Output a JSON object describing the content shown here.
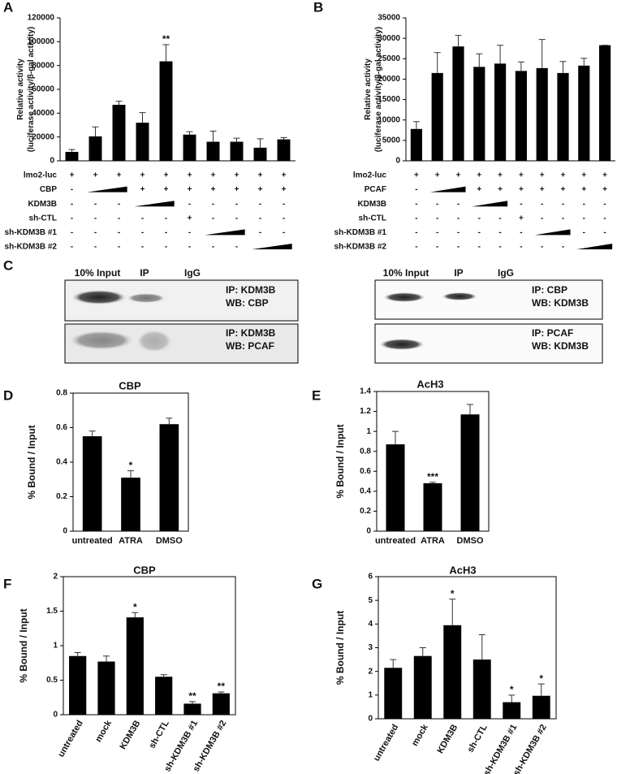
{
  "chart_data": [
    {
      "type": "bar",
      "panel": "A",
      "ylabel": [
        "Relative activity",
        "(luciferase activity/β-gal activity)"
      ],
      "categories": [
        null,
        null,
        null,
        null,
        null,
        null,
        null,
        null,
        null,
        null
      ],
      "values": [
        7500,
        20500,
        47000,
        32000,
        83500,
        22000,
        16000,
        16000,
        11000,
        18000
      ],
      "errors": [
        2000,
        8000,
        3000,
        8500,
        14000,
        2500,
        9000,
        3000,
        7500,
        1500
      ],
      "color": "#000000",
      "ylim": [
        0,
        120000
      ],
      "yticks": [
        0,
        20000,
        40000,
        60000,
        80000,
        100000,
        120000
      ],
      "annotations": [
        {
          "bar": 4,
          "text": "**"
        }
      ],
      "conditions": [
        {
          "label": "lmo2-luc",
          "cells": [
            "+",
            "+",
            "+",
            "+",
            "+",
            "+",
            "+",
            "+",
            "+",
            "+"
          ]
        },
        {
          "label": "CBP",
          "cells": [
            "-",
            null,
            null,
            "+",
            "+",
            "+",
            "+",
            "+",
            "+",
            "+"
          ]
        },
        {
          "label": "KDM3B",
          "cells": [
            "-",
            "-",
            "-",
            null,
            null,
            "-",
            "-",
            "-",
            "-",
            "-"
          ]
        },
        {
          "label": "sh-CTL",
          "cells": [
            "-",
            "-",
            "-",
            "-",
            "-",
            "+",
            "-",
            "-",
            "-",
            "-"
          ]
        },
        {
          "label": "sh-KDM3B #1",
          "cells": [
            "-",
            "-",
            "-",
            "-",
            "-",
            "-",
            null,
            null,
            "-",
            "-"
          ]
        },
        {
          "label": "sh-KDM3B #2",
          "cells": [
            "-",
            "-",
            "-",
            "-",
            "-",
            "-",
            "-",
            "-",
            null,
            null
          ]
        }
      ]
    },
    {
      "type": "bar",
      "panel": "B",
      "ylabel": [
        "Relative activity",
        "(luciferase activity/β-gal activity)"
      ],
      "categories": [
        null,
        null,
        null,
        null,
        null,
        null,
        null,
        null,
        null,
        null
      ],
      "values": [
        7800,
        21500,
        28000,
        23000,
        23800,
        22000,
        22700,
        21500,
        23300,
        28300
      ],
      "errors": [
        1800,
        5000,
        2700,
        3200,
        4500,
        2200,
        7000,
        2800,
        1800,
        0
      ],
      "color": "#000000",
      "ylim": [
        0,
        35000
      ],
      "yticks": [
        0,
        5000,
        10000,
        15000,
        20000,
        25000,
        30000,
        35000
      ],
      "conditions": [
        {
          "label": "lmo2-luc",
          "cells": [
            "+",
            "+",
            "+",
            "+",
            "+",
            "+",
            "+",
            "+",
            "+",
            "+"
          ]
        },
        {
          "label": "PCAF",
          "cells": [
            "-",
            null,
            null,
            "+",
            "+",
            "+",
            "+",
            "+",
            "+",
            "+"
          ]
        },
        {
          "label": "KDM3B",
          "cells": [
            "-",
            "-",
            "-",
            null,
            null,
            "-",
            "-",
            "-",
            "-",
            "-"
          ]
        },
        {
          "label": "sh-CTL",
          "cells": [
            "-",
            "-",
            "-",
            "-",
            "-",
            "+",
            "-",
            "-",
            "-",
            "-"
          ]
        },
        {
          "label": "sh-KDM3B #1",
          "cells": [
            "-",
            "-",
            "-",
            "-",
            "-",
            "-",
            null,
            null,
            "-",
            "-"
          ]
        },
        {
          "label": "sh-KDM3B #2",
          "cells": [
            "-",
            "-",
            "-",
            "-",
            "-",
            "-",
            "-",
            "-",
            null,
            null
          ]
        }
      ]
    },
    {
      "type": "bar",
      "panel": "D",
      "title": "CBP",
      "ylabel": [
        "% Bound / Input"
      ],
      "categories": [
        "untreated",
        "ATRA",
        "DMSO"
      ],
      "values": [
        0.55,
        0.31,
        0.62
      ],
      "errors": [
        0.03,
        0.04,
        0.035
      ],
      "color": "#000000",
      "ylim": [
        0,
        0.8
      ],
      "yticks": [
        0,
        0.2,
        0.4,
        0.6,
        0.8
      ],
      "annotations": [
        {
          "bar": 1,
          "text": "*"
        }
      ]
    },
    {
      "type": "bar",
      "panel": "E",
      "title": "AcH3",
      "ylabel": [
        "% Bound / Input"
      ],
      "categories": [
        "untreated",
        "ATRA",
        "DMSO"
      ],
      "values": [
        0.87,
        0.48,
        1.17
      ],
      "errors": [
        0.13,
        0.01,
        0.1
      ],
      "color": "#000000",
      "ylim": [
        0,
        1.4
      ],
      "yticks": [
        0,
        0.2,
        0.4,
        0.6,
        0.8,
        1,
        1.2,
        1.4
      ],
      "annotations": [
        {
          "bar": 1,
          "text": "***"
        }
      ]
    },
    {
      "type": "bar",
      "panel": "F",
      "title": "CBP",
      "ylabel": [
        "% Bound / Input"
      ],
      "categories": [
        "untreated",
        "mock",
        "KDM3B",
        "sh-CTL",
        "sh-KDM3B #1",
        "sh-KDM3B #2"
      ],
      "values": [
        0.85,
        0.77,
        1.41,
        0.55,
        0.16,
        0.31
      ],
      "errors": [
        0.05,
        0.08,
        0.07,
        0.03,
        0.03,
        0.02
      ],
      "color": "#000000",
      "ylim": [
        0,
        2
      ],
      "yticks": [
        0,
        0.5,
        1,
        1.5,
        2
      ],
      "annotations": [
        {
          "bar": 2,
          "text": "*"
        },
        {
          "bar": 4,
          "text": "**"
        },
        {
          "bar": 5,
          "text": "**"
        }
      ]
    },
    {
      "type": "bar",
      "panel": "G",
      "title": "AcH3",
      "ylabel": [
        "% Bound / Input"
      ],
      "categories": [
        "untreated",
        "mock",
        "KDM3B",
        "sh-CTL",
        "sh-KDM3B #1",
        "sh-KDM3B #2"
      ],
      "values": [
        2.15,
        2.65,
        3.95,
        2.5,
        0.7,
        0.97
      ],
      "errors": [
        0.35,
        0.35,
        1.1,
        1.05,
        0.3,
        0.5
      ],
      "color": "#000000",
      "ylim": [
        0,
        6
      ],
      "yticks": [
        0,
        1,
        2,
        3,
        4,
        5,
        6
      ],
      "annotations": [
        {
          "bar": 2,
          "text": "*"
        },
        {
          "bar": 4,
          "text": "*"
        },
        {
          "bar": 5,
          "text": "*"
        }
      ]
    }
  ],
  "blots": {
    "panel": "C",
    "left": {
      "headers": [
        "10% Input",
        "IP",
        "IgG"
      ],
      "boxes": [
        [
          "IP: KDM3B",
          "WB: CBP"
        ],
        [
          "IP: KDM3B",
          "WB: PCAF"
        ]
      ]
    },
    "right": {
      "headers": [
        "10% Input",
        "IP",
        "IgG"
      ],
      "boxes": [
        [
          "IP: CBP",
          "WB: KDM3B"
        ],
        [
          "IP: PCAF",
          "WB: KDM3B"
        ]
      ]
    }
  }
}
